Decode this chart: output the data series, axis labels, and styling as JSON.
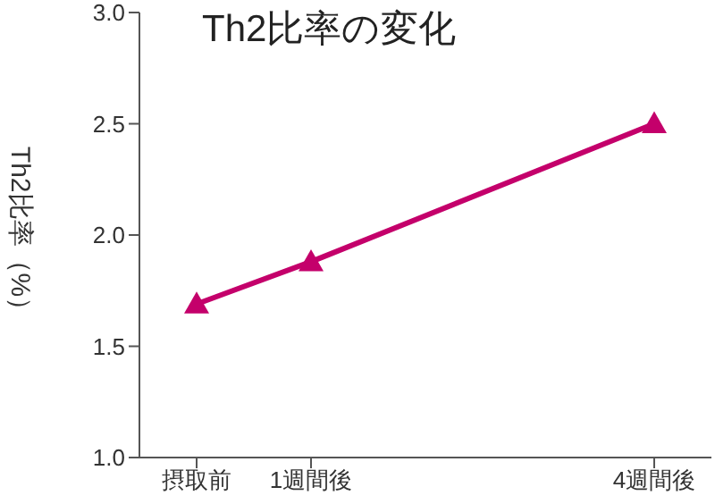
{
  "chart_data": {
    "type": "line",
    "title": "Th2比率の変化",
    "ylabel": "Th2比率（%）",
    "x": [
      0,
      1,
      4
    ],
    "xlim": [
      -0.5,
      4.5
    ],
    "xticks": [
      {
        "value": 0,
        "label": "摂取前"
      },
      {
        "value": 1,
        "label": "1週間後"
      },
      {
        "value": 4,
        "label": "4週間後"
      }
    ],
    "ylim": [
      1.0,
      3.0
    ],
    "yticks": [
      {
        "value": 1.0,
        "label": "1.0"
      },
      {
        "value": 1.5,
        "label": "1.5"
      },
      {
        "value": 2.0,
        "label": "2.0"
      },
      {
        "value": 2.5,
        "label": "2.5"
      },
      {
        "value": 3.0,
        "label": "3.0"
      }
    ],
    "series": [
      {
        "color": "#c4006b",
        "values": [
          1.69,
          1.88,
          2.5
        ]
      }
    ],
    "marker": "triangle",
    "line_style": "solid",
    "grid": false,
    "legend": false
  }
}
